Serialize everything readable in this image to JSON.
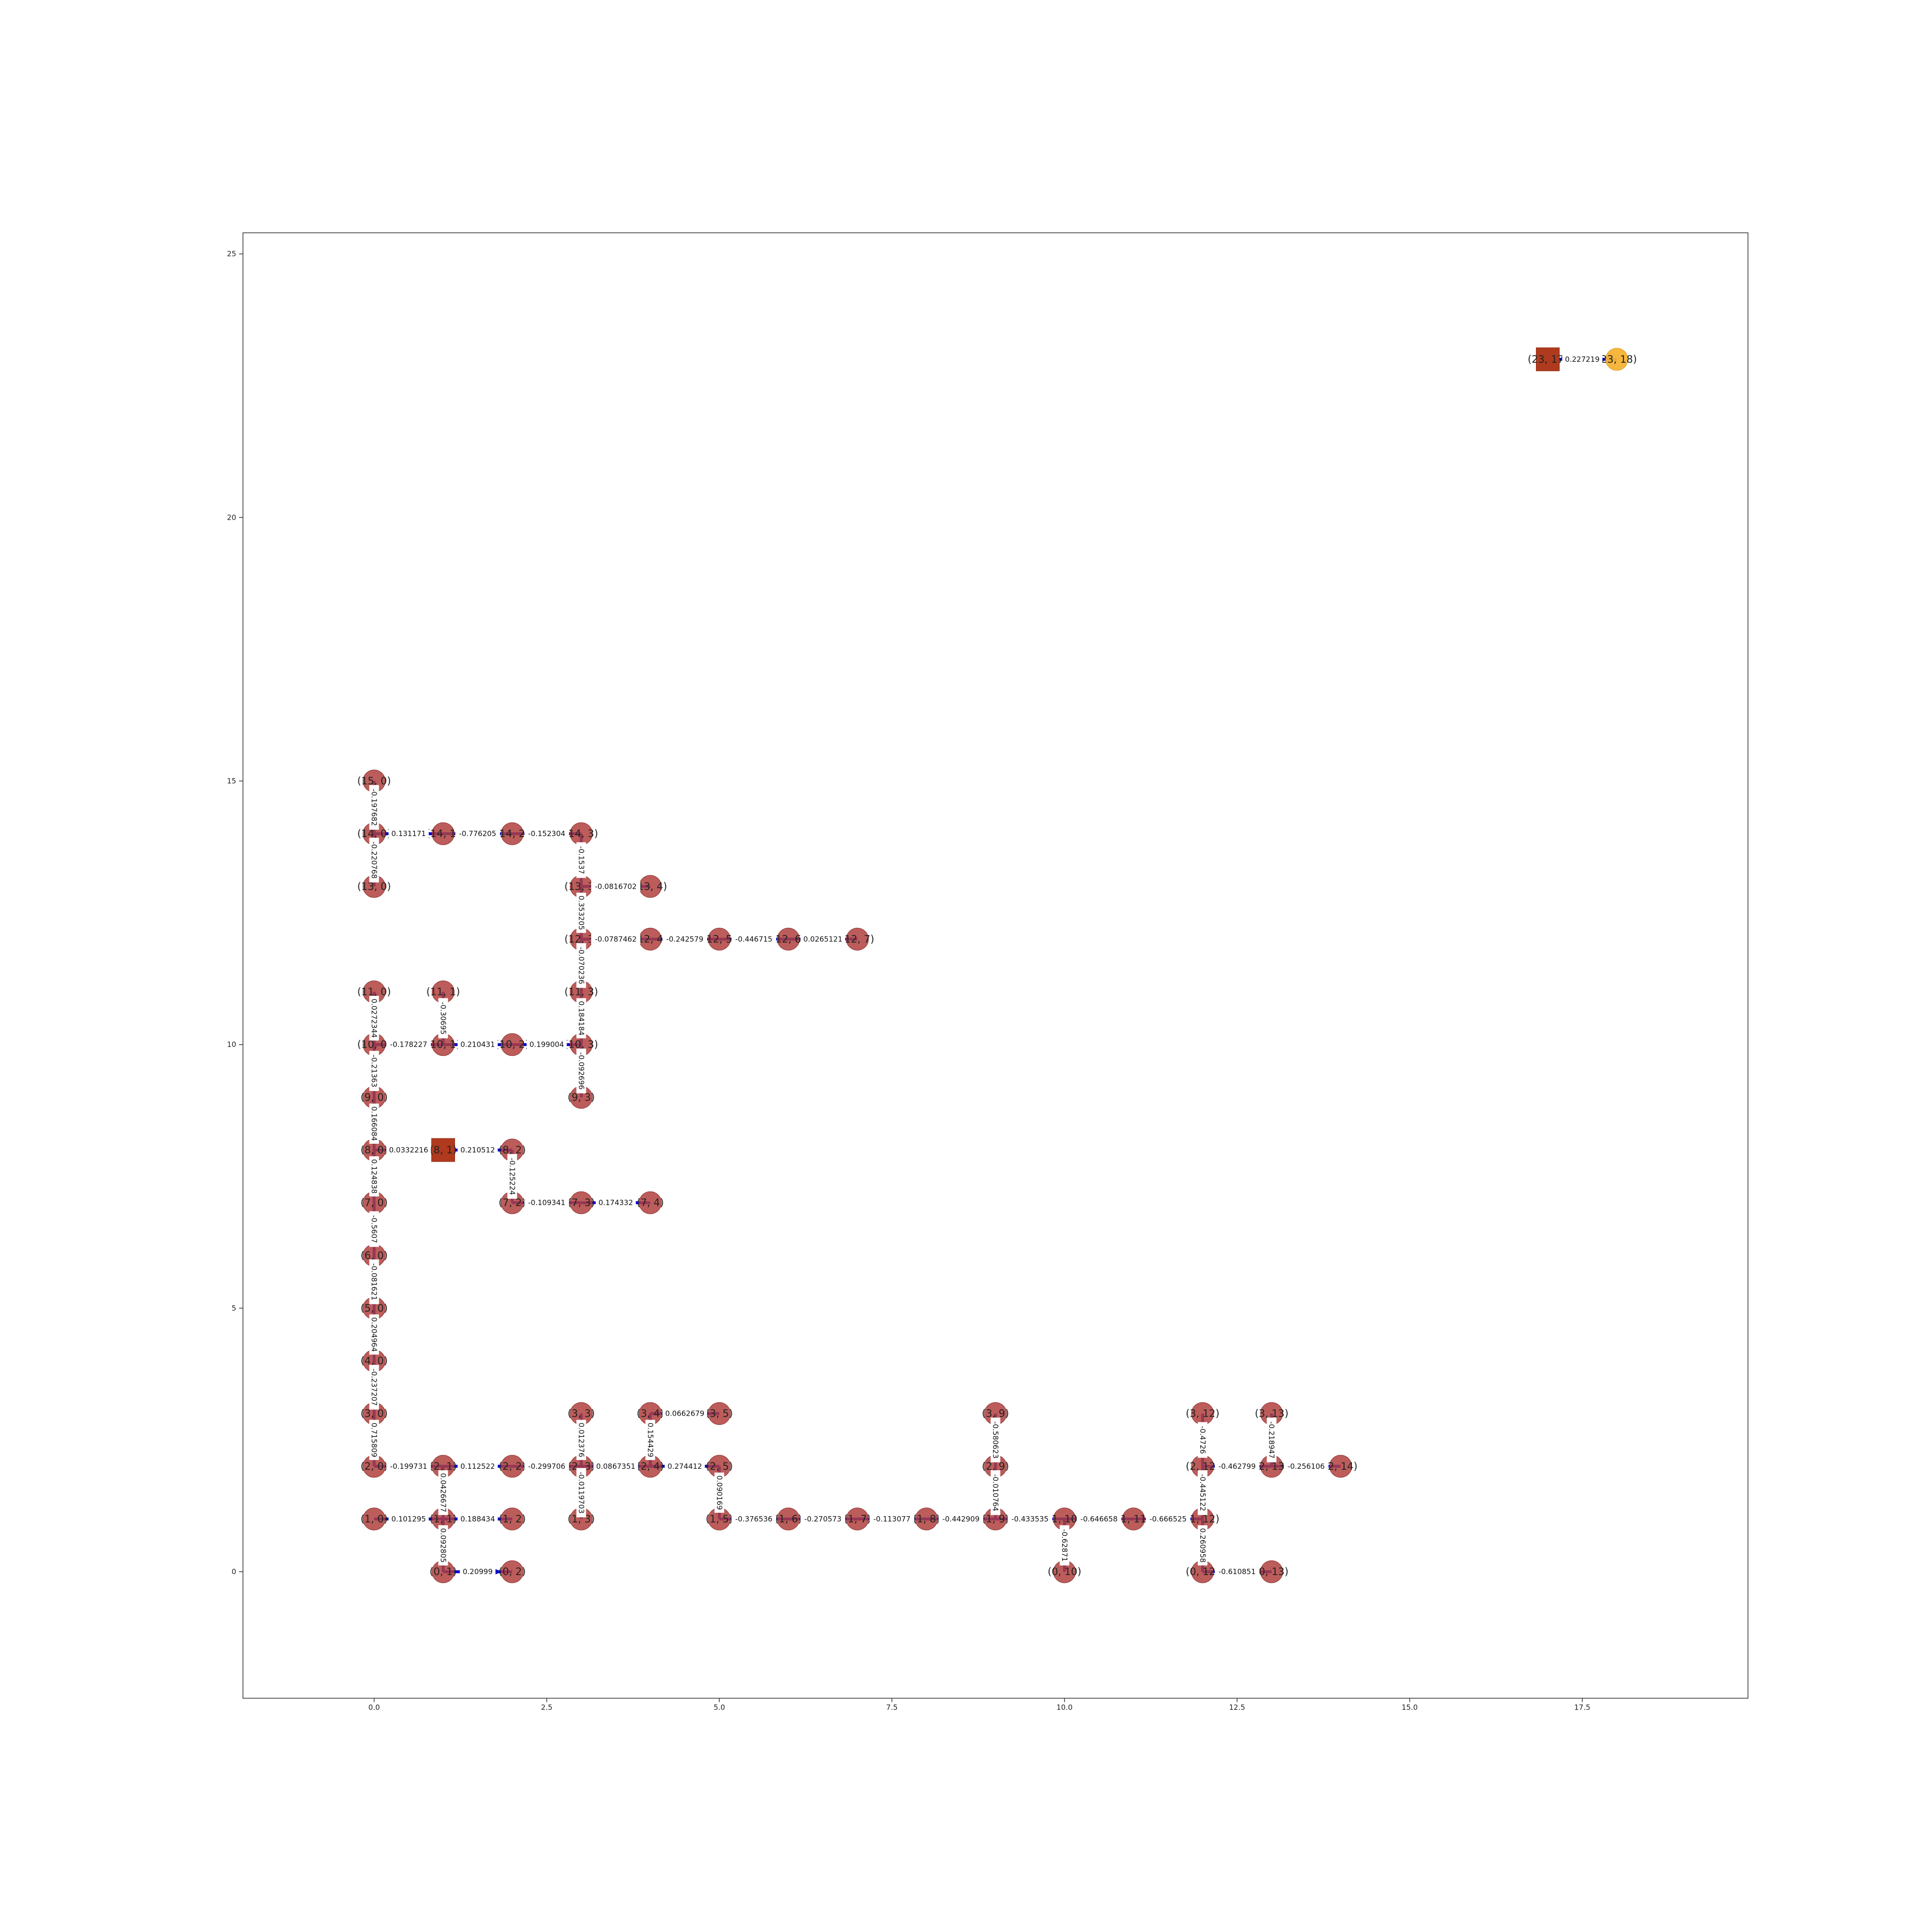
{
  "chart_data": {
    "type": "graph",
    "axes": {
      "xlim": [
        -1.9,
        19.9
      ],
      "ylim": [
        -2.4,
        25.4
      ],
      "xticks": [
        "0.0",
        "2.5",
        "5.0",
        "7.5",
        "10.0",
        "12.5",
        "15.0",
        "17.5"
      ],
      "yticks": [
        "0",
        "5",
        "10",
        "15",
        "20",
        "25"
      ],
      "grid": false
    },
    "nodes": [
      {
        "id": "15,0",
        "label": "(15, 0)",
        "x": 0,
        "y": 15,
        "kind": "circle"
      },
      {
        "id": "14,0",
        "label": "(14, 0)",
        "x": 0,
        "y": 14,
        "kind": "circle"
      },
      {
        "id": "14,1",
        "label": "(14, 1)",
        "x": 1,
        "y": 14,
        "kind": "circle"
      },
      {
        "id": "14,2",
        "label": "(14, 2)",
        "x": 2,
        "y": 14,
        "kind": "circle"
      },
      {
        "id": "14,3",
        "label": "(14, 3)",
        "x": 3,
        "y": 14,
        "kind": "circle"
      },
      {
        "id": "13,0",
        "label": "(13, 0)",
        "x": 0,
        "y": 13,
        "kind": "circle"
      },
      {
        "id": "13,3",
        "label": "(13, 3)",
        "x": 3,
        "y": 13,
        "kind": "circle"
      },
      {
        "id": "13,4",
        "label": "(13, 4)",
        "x": 4,
        "y": 13,
        "kind": "circle"
      },
      {
        "id": "12,3",
        "label": "(12, 3)",
        "x": 3,
        "y": 12,
        "kind": "circle"
      },
      {
        "id": "12,4",
        "label": "(12, 4)",
        "x": 4,
        "y": 12,
        "kind": "circle"
      },
      {
        "id": "12,5",
        "label": "(12, 5)",
        "x": 5,
        "y": 12,
        "kind": "circle"
      },
      {
        "id": "12,6",
        "label": "(12, 6)",
        "x": 6,
        "y": 12,
        "kind": "circle"
      },
      {
        "id": "12,7",
        "label": "(12, 7)",
        "x": 7,
        "y": 12,
        "kind": "circle"
      },
      {
        "id": "11,0",
        "label": "(11, 0)",
        "x": 0,
        "y": 11,
        "kind": "circle"
      },
      {
        "id": "11,1",
        "label": "(11, 1)",
        "x": 1,
        "y": 11,
        "kind": "circle"
      },
      {
        "id": "11,3",
        "label": "(11, 3)",
        "x": 3,
        "y": 11,
        "kind": "circle"
      },
      {
        "id": "10,0",
        "label": "(10, 0)",
        "x": 0,
        "y": 10,
        "kind": "circle"
      },
      {
        "id": "10,1",
        "label": "(10, 1)",
        "x": 1,
        "y": 10,
        "kind": "circle"
      },
      {
        "id": "10,2",
        "label": "(10, 2)",
        "x": 2,
        "y": 10,
        "kind": "circle"
      },
      {
        "id": "10,3",
        "label": "(10, 3)",
        "x": 3,
        "y": 10,
        "kind": "circle"
      },
      {
        "id": "9,0",
        "label": "(9, 0)",
        "x": 0,
        "y": 9,
        "kind": "circle"
      },
      {
        "id": "9,3",
        "label": "(9, 3)",
        "x": 3,
        "y": 9,
        "kind": "circle"
      },
      {
        "id": "8,0",
        "label": "(8, 0)",
        "x": 0,
        "y": 8,
        "kind": "circle"
      },
      {
        "id": "8,1",
        "label": "(8, 1)",
        "x": 1,
        "y": 8,
        "kind": "square"
      },
      {
        "id": "8,2",
        "label": "(8, 2)",
        "x": 2,
        "y": 8,
        "kind": "circle"
      },
      {
        "id": "7,0",
        "label": "(7, 0)",
        "x": 0,
        "y": 7,
        "kind": "circle"
      },
      {
        "id": "7,2",
        "label": "(7, 2)",
        "x": 2,
        "y": 7,
        "kind": "circle"
      },
      {
        "id": "7,3",
        "label": "(7, 3)",
        "x": 3,
        "y": 7,
        "kind": "circle"
      },
      {
        "id": "7,4",
        "label": "(7, 4)",
        "x": 4,
        "y": 7,
        "kind": "circle"
      },
      {
        "id": "6,0",
        "label": "(6, 0)",
        "x": 0,
        "y": 6,
        "kind": "circle"
      },
      {
        "id": "5,0",
        "label": "(5, 0)",
        "x": 0,
        "y": 5,
        "kind": "circle"
      },
      {
        "id": "4,0",
        "label": "(4, 0)",
        "x": 0,
        "y": 4,
        "kind": "circle"
      },
      {
        "id": "3,0",
        "label": "(3, 0)",
        "x": 0,
        "y": 3,
        "kind": "circle"
      },
      {
        "id": "3,3",
        "label": "(3, 3)",
        "x": 3,
        "y": 3,
        "kind": "circle"
      },
      {
        "id": "3,4",
        "label": "(3, 4)",
        "x": 4,
        "y": 3,
        "kind": "circle"
      },
      {
        "id": "3,5",
        "label": "(3, 5)",
        "x": 5,
        "y": 3,
        "kind": "circle"
      },
      {
        "id": "3,9",
        "label": "(3, 9)",
        "x": 9,
        "y": 3,
        "kind": "circle"
      },
      {
        "id": "3,12",
        "label": "(3, 12)",
        "x": 12,
        "y": 3,
        "kind": "circle"
      },
      {
        "id": "3,13",
        "label": "(3, 13)",
        "x": 13,
        "y": 3,
        "kind": "circle"
      },
      {
        "id": "2,0",
        "label": "(2, 0)",
        "x": 0,
        "y": 2,
        "kind": "circle"
      },
      {
        "id": "2,1",
        "label": "(2, 1)",
        "x": 1,
        "y": 2,
        "kind": "circle"
      },
      {
        "id": "2,2",
        "label": "(2, 2)",
        "x": 2,
        "y": 2,
        "kind": "circle"
      },
      {
        "id": "2,3",
        "label": "(2, 3)",
        "x": 3,
        "y": 2,
        "kind": "circle"
      },
      {
        "id": "2,4",
        "label": "(2, 4)",
        "x": 4,
        "y": 2,
        "kind": "circle"
      },
      {
        "id": "2,5",
        "label": "(2, 5)",
        "x": 5,
        "y": 2,
        "kind": "circle"
      },
      {
        "id": "2,9",
        "label": "(2, 9)",
        "x": 9,
        "y": 2,
        "kind": "circle"
      },
      {
        "id": "2,12",
        "label": "(2, 12)",
        "x": 12,
        "y": 2,
        "kind": "circle"
      },
      {
        "id": "2,13",
        "label": "(2, 13)",
        "x": 13,
        "y": 2,
        "kind": "circle"
      },
      {
        "id": "2,14",
        "label": "(2, 14)",
        "x": 14,
        "y": 2,
        "kind": "circle"
      },
      {
        "id": "1,0",
        "label": "(1, 0)",
        "x": 0,
        "y": 1,
        "kind": "circle"
      },
      {
        "id": "1,1",
        "label": "(1, 1)",
        "x": 1,
        "y": 1,
        "kind": "circle"
      },
      {
        "id": "1,2",
        "label": "(1, 2)",
        "x": 2,
        "y": 1,
        "kind": "circle"
      },
      {
        "id": "1,3",
        "label": "(1, 3)",
        "x": 3,
        "y": 1,
        "kind": "circle"
      },
      {
        "id": "1,5",
        "label": "(1, 5)",
        "x": 5,
        "y": 1,
        "kind": "circle"
      },
      {
        "id": "1,6",
        "label": "(1, 6)",
        "x": 6,
        "y": 1,
        "kind": "circle"
      },
      {
        "id": "1,7",
        "label": "(1, 7)",
        "x": 7,
        "y": 1,
        "kind": "circle"
      },
      {
        "id": "1,8",
        "label": "(1, 8)",
        "x": 8,
        "y": 1,
        "kind": "circle"
      },
      {
        "id": "1,9",
        "label": "(1, 9)",
        "x": 9,
        "y": 1,
        "kind": "circle"
      },
      {
        "id": "1,10",
        "label": "(1, 10)",
        "x": 10,
        "y": 1,
        "kind": "circle"
      },
      {
        "id": "1,11",
        "label": "(1, 11)",
        "x": 11,
        "y": 1,
        "kind": "circle"
      },
      {
        "id": "1,12",
        "label": "(1, 12)",
        "x": 12,
        "y": 1,
        "kind": "circle"
      },
      {
        "id": "0,1",
        "label": "(0, 1)",
        "x": 1,
        "y": 0,
        "kind": "circle"
      },
      {
        "id": "0,2",
        "label": "(0, 2)",
        "x": 2,
        "y": 0,
        "kind": "circle"
      },
      {
        "id": "0,10",
        "label": "(0, 10)",
        "x": 10,
        "y": 0,
        "kind": "circle"
      },
      {
        "id": "0,12",
        "label": "(0, 12)",
        "x": 12,
        "y": 0,
        "kind": "circle"
      },
      {
        "id": "0,13",
        "label": "(0, 13)",
        "x": 13,
        "y": 0,
        "kind": "circle"
      },
      {
        "id": "23,17",
        "label": "(23, 17)",
        "x": 17,
        "y": 23,
        "kind": "square"
      },
      {
        "id": "23,18",
        "label": "(23, 18)",
        "x": 18,
        "y": 23,
        "kind": "goal"
      }
    ],
    "edges": [
      {
        "from": "15,0",
        "to": "14,0",
        "weight": "-0.197682"
      },
      {
        "from": "14,0",
        "to": "14,1",
        "weight": "0.131171"
      },
      {
        "from": "14,1",
        "to": "14,2",
        "weight": "-0.776205"
      },
      {
        "from": "14,2",
        "to": "14,3",
        "weight": "-0.152304"
      },
      {
        "from": "14,0",
        "to": "13,0",
        "weight": "-0.220768"
      },
      {
        "from": "14,3",
        "to": "13,3",
        "weight": "-0.1537"
      },
      {
        "from": "13,3",
        "to": "13,4",
        "weight": "-0.0816702"
      },
      {
        "from": "13,3",
        "to": "12,3",
        "weight": "0.353205"
      },
      {
        "from": "12,3",
        "to": "12,4",
        "weight": "-0.0787462"
      },
      {
        "from": "12,4",
        "to": "12,5",
        "weight": "-0.242579"
      },
      {
        "from": "12,5",
        "to": "12,6",
        "weight": "-0.446715"
      },
      {
        "from": "12,6",
        "to": "12,7",
        "weight": "0.0265121"
      },
      {
        "from": "12,3",
        "to": "11,3",
        "weight": "-0.070236"
      },
      {
        "from": "11,0",
        "to": "10,0",
        "weight": "0.0272344"
      },
      {
        "from": "11,1",
        "to": "10,1",
        "weight": "-0.30695"
      },
      {
        "from": "11,3",
        "to": "10,3",
        "weight": "0.184184"
      },
      {
        "from": "10,0",
        "to": "10,1",
        "weight": "-0.178227"
      },
      {
        "from": "10,1",
        "to": "10,2",
        "weight": "0.210431"
      },
      {
        "from": "10,2",
        "to": "10,3",
        "weight": "0.199004"
      },
      {
        "from": "10,0",
        "to": "9,0",
        "weight": "-0.21363"
      },
      {
        "from": "10,3",
        "to": "9,3",
        "weight": "-0.092696"
      },
      {
        "from": "9,0",
        "to": "8,0",
        "weight": "0.166084"
      },
      {
        "from": "8,0",
        "to": "8,1",
        "weight": "0.0332216"
      },
      {
        "from": "8,1",
        "to": "8,2",
        "weight": "0.210512"
      },
      {
        "from": "8,2",
        "to": "7,2",
        "weight": "-0.125224"
      },
      {
        "from": "8,0",
        "to": "7,0",
        "weight": "0.124838"
      },
      {
        "from": "7,2",
        "to": "7,3",
        "weight": "-0.109341"
      },
      {
        "from": "7,3",
        "to": "7,4",
        "weight": "0.174332"
      },
      {
        "from": "7,0",
        "to": "6,0",
        "weight": "-0.5607"
      },
      {
        "from": "6,0",
        "to": "5,0",
        "weight": "-0.081621"
      },
      {
        "from": "5,0",
        "to": "4,0",
        "weight": "0.204964"
      },
      {
        "from": "4,0",
        "to": "3,0",
        "weight": "-0.237207"
      },
      {
        "from": "3,0",
        "to": "2,0",
        "weight": "0.715809"
      },
      {
        "from": "2,0",
        "to": "2,1",
        "weight": "-0.199731"
      },
      {
        "from": "2,1",
        "to": "2,2",
        "weight": "0.112522"
      },
      {
        "from": "2,2",
        "to": "2,3",
        "weight": "-0.299706"
      },
      {
        "from": "2,3",
        "to": "2,4",
        "weight": "0.0867351"
      },
      {
        "from": "2,4",
        "to": "2,5",
        "weight": "0.274412"
      },
      {
        "from": "3,3",
        "to": "2,3",
        "weight": "0.012376"
      },
      {
        "from": "3,4",
        "to": "3,5",
        "weight": "0.0662679"
      },
      {
        "from": "3,4",
        "to": "2,4",
        "weight": "0.154429"
      },
      {
        "from": "2,1",
        "to": "1,1",
        "weight": "0.0426677"
      },
      {
        "from": "2,3",
        "to": "1,3",
        "weight": "-0.0119703"
      },
      {
        "from": "2,5",
        "to": "1,5",
        "weight": "0.090169"
      },
      {
        "from": "1,0",
        "to": "1,1",
        "weight": "0.101295"
      },
      {
        "from": "1,1",
        "to": "1,2",
        "weight": "0.188434"
      },
      {
        "from": "1,1",
        "to": "0,1",
        "weight": "0.092805"
      },
      {
        "from": "0,1",
        "to": "0,2",
        "weight": "0.20999"
      },
      {
        "from": "1,5",
        "to": "1,6",
        "weight": "-0.376536"
      },
      {
        "from": "1,6",
        "to": "1,7",
        "weight": "-0.270573"
      },
      {
        "from": "1,7",
        "to": "1,8",
        "weight": "-0.113077"
      },
      {
        "from": "1,8",
        "to": "1,9",
        "weight": "-0.442909"
      },
      {
        "from": "1,9",
        "to": "1,10",
        "weight": "-0.433535"
      },
      {
        "from": "1,10",
        "to": "1,11",
        "weight": "-0.646658"
      },
      {
        "from": "1,11",
        "to": "1,12",
        "weight": "-0.666525"
      },
      {
        "from": "3,9",
        "to": "2,9",
        "weight": "-0.580623"
      },
      {
        "from": "2,9",
        "to": "1,9",
        "weight": "-0.010764"
      },
      {
        "from": "1,10",
        "to": "0,10",
        "weight": "-0.62871"
      },
      {
        "from": "3,12",
        "to": "2,12",
        "weight": "-0.4726"
      },
      {
        "from": "2,12",
        "to": "2,13",
        "weight": "-0.462799"
      },
      {
        "from": "2,13",
        "to": "2,14",
        "weight": "-0.256106"
      },
      {
        "from": "3,13",
        "to": "2,13",
        "weight": "-0.218947"
      },
      {
        "from": "2,12",
        "to": "1,12",
        "weight": "-0.445122"
      },
      {
        "from": "1,12",
        "to": "0,12",
        "weight": "0.260958"
      },
      {
        "from": "0,12",
        "to": "0,13",
        "weight": "-0.610851"
      },
      {
        "from": "23,17",
        "to": "23,18",
        "weight": "0.227219"
      }
    ]
  }
}
